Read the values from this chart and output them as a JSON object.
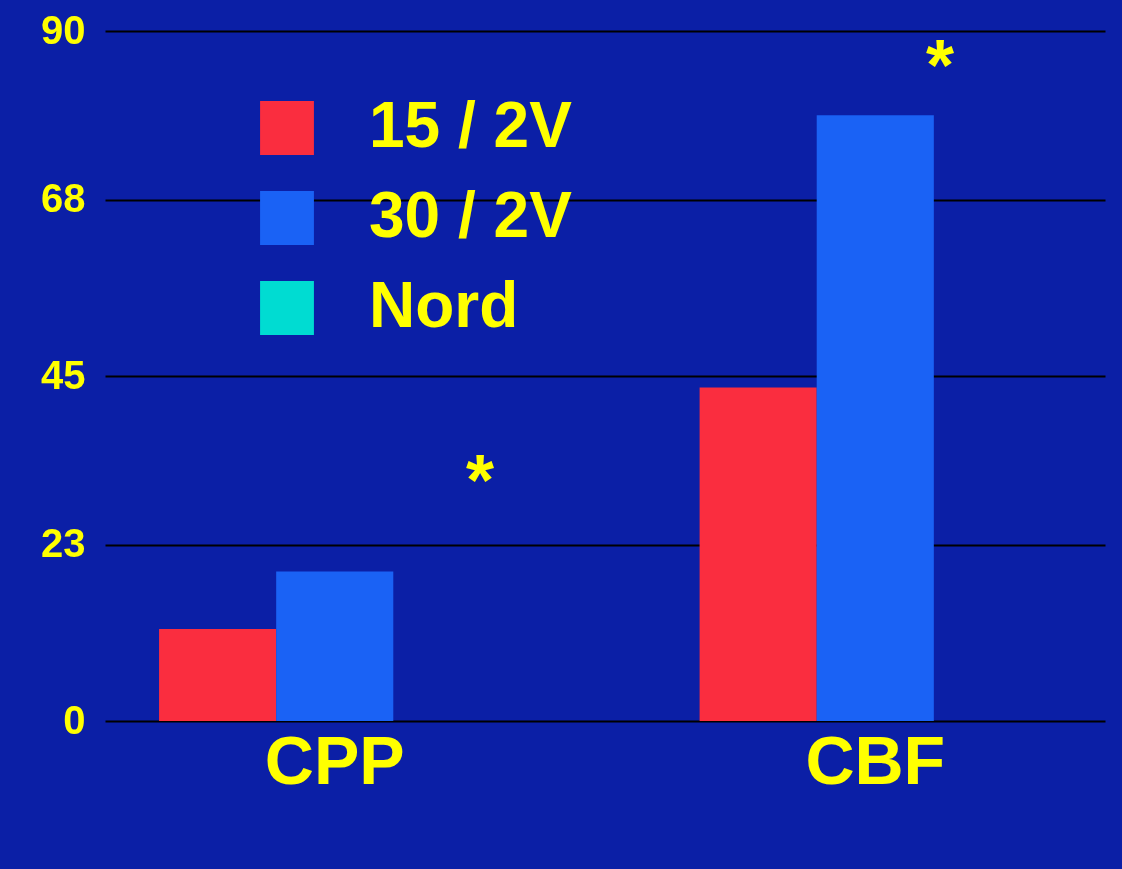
{
  "chart_data": {
    "type": "bar",
    "categories": [
      "CPP",
      "CBF"
    ],
    "series": [
      {
        "name": "15 / 2V",
        "color": "#fa2d3f",
        "values": [
          12,
          43.5
        ]
      },
      {
        "name": "30 / 2V",
        "color": "#1a62f5",
        "values": [
          19.5,
          79
        ]
      },
      {
        "name": "Nord",
        "color": "#00dcd2",
        "values": [
          null,
          null
        ]
      }
    ],
    "ylim": [
      0,
      90
    ],
    "yticks": [
      0,
      23,
      45,
      68,
      90
    ],
    "grid": "y",
    "legend": "top left",
    "annotations": [
      "*",
      "*"
    ]
  }
}
